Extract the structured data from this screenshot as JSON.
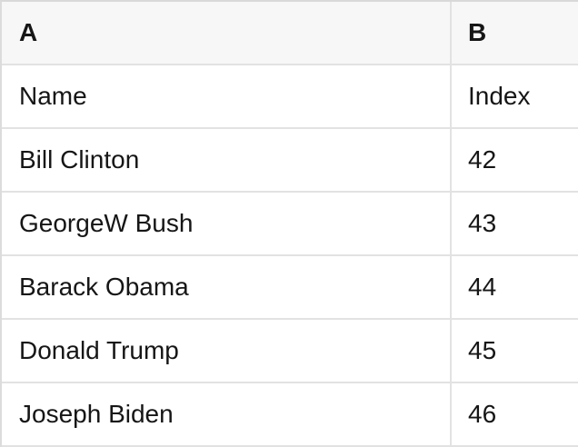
{
  "colors": {
    "header_background": "#f7f7f7",
    "gridline": "#e2e2e2",
    "outer_border": "#d9d9d9",
    "text": "#161616"
  },
  "table": {
    "column_headers": [
      {
        "label": "A"
      },
      {
        "label": "B"
      }
    ],
    "rows": [
      {
        "a": "Name",
        "b": "Index"
      },
      {
        "a": "Bill Clinton",
        "b": "42"
      },
      {
        "a": "GeorgeW Bush",
        "b": "43"
      },
      {
        "a": "Barack Obama",
        "b": "44"
      },
      {
        "a": "Donald Trump",
        "b": "45"
      },
      {
        "a": "Joseph Biden",
        "b": "46"
      }
    ]
  }
}
